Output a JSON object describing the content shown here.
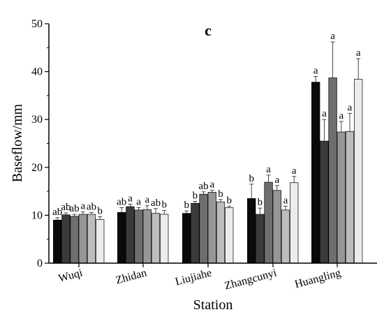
{
  "chart_data": {
    "type": "bar",
    "panel_label": "c",
    "xlabel": "Station",
    "ylabel": "Baseflow/mm",
    "ylim": [
      0,
      50
    ],
    "yticks": [
      0,
      10,
      20,
      30,
      40,
      50
    ],
    "categories": [
      "Wuqi",
      "Zhidan",
      "Liujiahe",
      "Zhangcunyi",
      "Huangling"
    ],
    "series": [
      {
        "color": "#0a0a0a",
        "values": [
          9.0,
          10.6,
          10.4,
          13.5,
          37.8
        ],
        "errors": [
          0.5,
          1.0,
          0.5,
          3.0,
          1.2
        ],
        "labels": [
          "ab",
          "ab",
          "b",
          "b",
          "a"
        ]
      },
      {
        "color": "#3a3a3a",
        "values": [
          10.1,
          11.8,
          12.5,
          10.2,
          25.5
        ],
        "errors": [
          0.4,
          0.5,
          0.4,
          1.3,
          4.5
        ],
        "labels": [
          "ab",
          "a",
          "b",
          "b",
          "a"
        ]
      },
      {
        "color": "#6e6e6e",
        "values": [
          9.8,
          11.1,
          14.4,
          16.9,
          38.7
        ],
        "errors": [
          0.4,
          0.5,
          0.5,
          1.5,
          7.5
        ],
        "labels": [
          "ab",
          "a",
          "ab",
          "a",
          "a"
        ]
      },
      {
        "color": "#969696",
        "values": [
          10.2,
          11.2,
          14.8,
          15.2,
          27.4
        ],
        "errors": [
          0.5,
          0.8,
          0.4,
          1.0,
          2.2
        ],
        "labels": [
          "a",
          "a",
          "a",
          "a",
          "a"
        ]
      },
      {
        "color": "#bdbdbd",
        "values": [
          10.2,
          10.4,
          12.8,
          11.1,
          27.5
        ],
        "errors": [
          0.4,
          1.0,
          0.5,
          0.8,
          3.8
        ],
        "labels": [
          "ab",
          "ab",
          "b",
          "a",
          "a"
        ]
      },
      {
        "color": "#ececec",
        "values": [
          9.1,
          10.2,
          11.6,
          16.8,
          38.4
        ],
        "errors": [
          0.6,
          0.8,
          0.3,
          1.3,
          4.3
        ],
        "labels": [
          "b",
          "b",
          "b",
          "a",
          "a"
        ]
      }
    ],
    "grid": false,
    "legend": "none"
  }
}
